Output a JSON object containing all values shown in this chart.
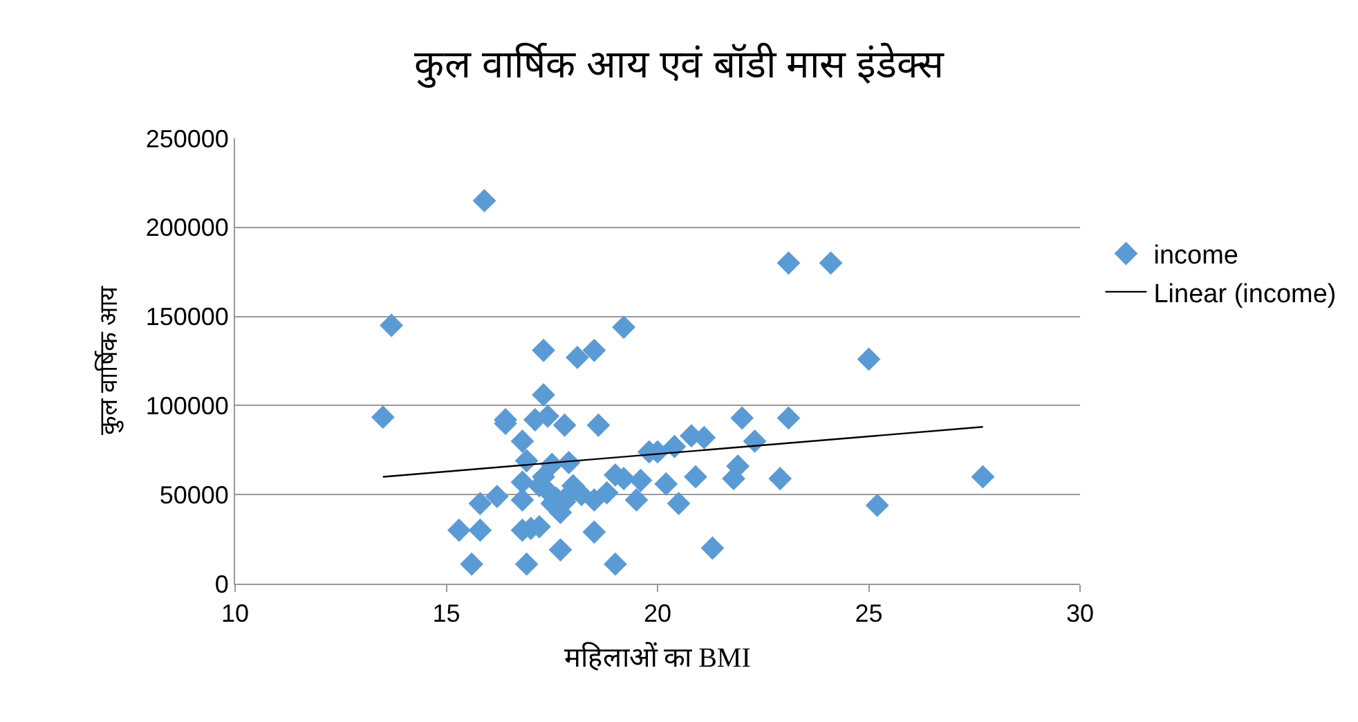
{
  "chart_data": {
    "type": "scatter",
    "title": "कुल वार्षिक आय एवं बॉडी मास इंडेक्स",
    "xlabel": "महिलाओं का BMI",
    "ylabel": "कुल वार्षिक आय",
    "xlim": [
      10,
      30
    ],
    "xticks": [
      10,
      15,
      20,
      25,
      30
    ],
    "ylim": [
      0,
      250000
    ],
    "yticks": [
      0,
      50000,
      100000,
      150000,
      200000,
      250000
    ],
    "grid": "y",
    "legend": "right",
    "marker": "diamond",
    "series": [
      {
        "name": "income",
        "color": "#5b9bd5",
        "x": [
          13.5,
          13.7,
          15.9,
          15.3,
          15.6,
          15.8,
          15.8,
          16.2,
          16.4,
          16.4,
          16.8,
          16.9,
          16.8,
          16.8,
          16.9,
          16.8,
          17.0,
          17.2,
          17.3,
          17.3,
          17.1,
          17.4,
          17.5,
          17.8,
          17.7,
          17.8,
          17.7,
          17.9,
          17.9,
          18.1,
          18.5,
          18.6,
          18.5,
          18.5,
          18.8,
          19.0,
          19.2,
          19.0,
          19.2,
          19.5,
          19.6,
          19.8,
          20.0,
          20.2,
          20.4,
          20.5,
          20.8,
          20.9,
          21.1,
          21.3,
          21.8,
          21.9,
          22.0,
          22.3,
          22.9,
          23.1,
          23.1,
          24.1,
          25.0,
          25.2,
          27.7,
          17.2,
          17.4,
          17.6,
          18.2,
          18.0,
          17.3,
          17.5
        ],
        "values": [
          93500,
          145000,
          215000,
          30000,
          11000,
          30000,
          45000,
          49000,
          90000,
          92000,
          80000,
          69000,
          57000,
          47000,
          11000,
          30000,
          31000,
          32000,
          131000,
          106000,
          92000,
          94000,
          67000,
          89000,
          40000,
          46000,
          19000,
          68000,
          50000,
          127000,
          131000,
          89000,
          47000,
          29000,
          51000,
          61000,
          144000,
          11000,
          59000,
          47000,
          58000,
          74000,
          74000,
          56000,
          77000,
          45000,
          83000,
          60000,
          82000,
          20000,
          59000,
          66000,
          93000,
          80000,
          59000,
          180000,
          93000,
          180000,
          126000,
          44000,
          60000,
          55000,
          52000,
          48000,
          50000,
          55000,
          60000,
          45000
        ]
      },
      {
        "name": "Linear (income)",
        "type": "line",
        "color": "#000000",
        "marker": "none",
        "x": [
          13.5,
          27.7
        ],
        "values": [
          60000,
          88000
        ]
      }
    ]
  }
}
